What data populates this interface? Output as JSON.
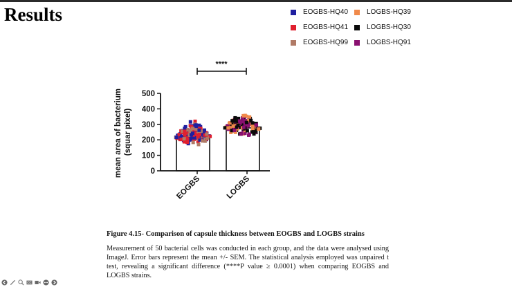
{
  "slide": {
    "title": "Results"
  },
  "legend": {
    "items": [
      {
        "label": "EOGBS-HQ40",
        "color": "#1f1fa0"
      },
      {
        "label": "LOGBS-HQ39",
        "color": "#f08a4b"
      },
      {
        "label": "EOGBS-HQ41",
        "color": "#e0202f"
      },
      {
        "label": "LOGBS-HQ30",
        "color": "#0a0a0a"
      },
      {
        "label": "EOGBS-HQ99",
        "color": "#b07a66"
      },
      {
        "label": "LOGBS-HQ91",
        "color": "#8a1070"
      }
    ]
  },
  "chart_data": {
    "type": "bar",
    "title": "",
    "categories": [
      "EOGBS",
      "LOGBS"
    ],
    "values": [
      219,
      277
    ],
    "xlabel": "",
    "ylabel": "mean area of bacterium (squar pixel)",
    "ylim": [
      0,
      500
    ],
    "yticks": [
      0,
      100,
      200,
      300,
      400,
      500
    ],
    "grid": false,
    "legend_position": "top-right",
    "annotation": "****",
    "significance_bracket": [
      "EOGBS",
      "LOGBS"
    ],
    "scatter_overlay": {
      "EOGBS": {
        "range_approx": [
          145,
          355
        ],
        "series": [
          "EOGBS-HQ40",
          "EOGBS-HQ41",
          "EOGBS-HQ99"
        ]
      },
      "LOGBS": {
        "range_approx": [
          205,
          395
        ],
        "series": [
          "LOGBS-HQ39",
          "LOGBS-HQ30",
          "LOGBS-HQ91"
        ]
      }
    }
  },
  "caption": {
    "title": "Figure 4.15- Comparison of capsule thickness between EOGBS and LOGBS strains",
    "body": "Measurement of 50 bacterial cells was conducted in each group, and the data were analysed using ImageJ. Error bars represent the mean +/- SEM. The statistical analysis employed was unpaired t test, revealing a significant difference (****P value ≥ 0.0001) when comparing EOGBS and LOGBS strains."
  },
  "toolbar": {
    "icons": [
      "back-icon",
      "pen-icon",
      "zoom-icon",
      "captions-icon",
      "video-icon",
      "more-icon",
      "forward-icon"
    ]
  }
}
